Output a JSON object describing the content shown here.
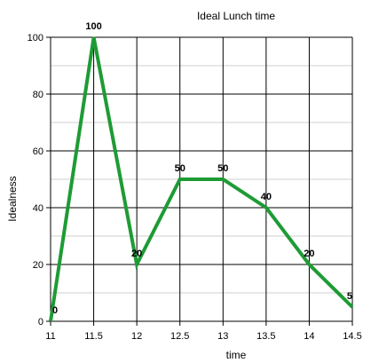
{
  "chart_data": {
    "type": "line",
    "title": "Ideal Lunch time",
    "xlabel": "time",
    "ylabel": "Idealness",
    "x": [
      11,
      11.5,
      12,
      12.5,
      13,
      13.5,
      14,
      14.5
    ],
    "x_tick_labels": [
      "11",
      "11.5",
      "12",
      "12.5",
      "13",
      "13.5",
      "14",
      "14.5"
    ],
    "y_ticks": [
      0,
      20,
      40,
      60,
      80,
      100
    ],
    "xlim": [
      11,
      14.5
    ],
    "ylim": [
      0,
      100
    ],
    "grid": true,
    "series": [
      {
        "values": [
          0,
          100,
          20,
          50,
          50,
          40,
          20,
          5
        ],
        "data_labels": [
          "0",
          "100",
          "20",
          "50",
          "50",
          "40",
          "20",
          "5"
        ],
        "color": "#1e9b35"
      }
    ]
  }
}
